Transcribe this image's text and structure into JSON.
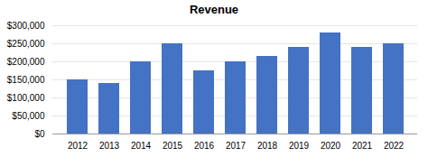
{
  "chart_data": {
    "type": "bar",
    "title": "Revenue",
    "categories": [
      "2012",
      "2013",
      "2014",
      "2015",
      "2016",
      "2017",
      "2018",
      "2019",
      "2020",
      "2021",
      "2022"
    ],
    "values": [
      150000,
      140000,
      200000,
      250000,
      175000,
      200000,
      215000,
      240000,
      280000,
      240000,
      250000
    ],
    "color": "#4472C4",
    "ylim": [
      0,
      300000
    ],
    "yticks": [
      {
        "value": 0,
        "label": "$0"
      },
      {
        "value": 50000,
        "label": "$50,000"
      },
      {
        "value": 100000,
        "label": "$100,000"
      },
      {
        "value": 150000,
        "label": "$150,000"
      },
      {
        "value": 200000,
        "label": "$200,000"
      },
      {
        "value": 250000,
        "label": "$250,000"
      },
      {
        "value": 300000,
        "label": "$300,000"
      }
    ],
    "grid": true
  }
}
